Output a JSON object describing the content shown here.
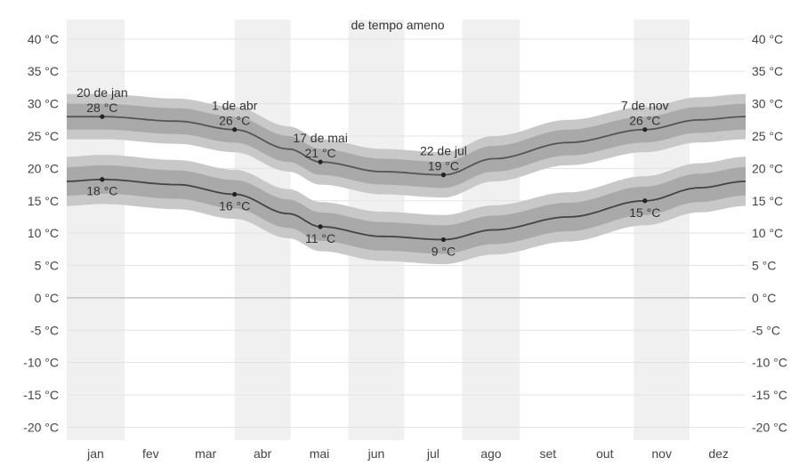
{
  "chart_data": {
    "type": "line",
    "title": "de tempo ameno",
    "x_unit": "day_of_year",
    "ylim": [
      -22,
      43
    ],
    "y_ticks": [
      -20,
      -15,
      -10,
      -5,
      0,
      5,
      10,
      15,
      20,
      25,
      30,
      35,
      40
    ],
    "y_tick_labels": [
      "-20 °C",
      "-15 °C",
      "-10 °C",
      "-5 °C",
      "0 °C",
      "5 °C",
      "10 °C",
      "15 °C",
      "20 °C",
      "25 °C",
      "30 °C",
      "35 °C",
      "40 °C"
    ],
    "months": [
      "jan",
      "fev",
      "mar",
      "abr",
      "mai",
      "jun",
      "jul",
      "ago",
      "set",
      "out",
      "nov",
      "dez"
    ],
    "shaded_months": [
      "jan",
      "abr",
      "jun",
      "ago",
      "nov"
    ],
    "grid": true,
    "legend": "none",
    "colors": {
      "high_line": "#555555",
      "low_line": "#444444",
      "outer_band": "#c8c8c8",
      "inner_band": "#a9a9a9",
      "month_shade": "#f0f0f0",
      "grid": "#e3e3e3",
      "zero_line": "#bbbbbb"
    },
    "series": [
      {
        "x": [
          1,
          20,
          60,
          91,
          120,
          137,
          170,
          203,
          230,
          270,
          311,
          340,
          365
        ],
        "values": [
          28,
          28,
          27.3,
          26,
          23,
          21,
          19.5,
          19,
          21.5,
          24,
          26,
          27.5,
          28
        ],
        "band_inner": [
          2,
          2,
          2,
          2,
          2,
          2,
          2,
          2,
          2,
          2,
          2,
          2,
          2
        ],
        "band_outer": [
          3.5,
          3.5,
          3.5,
          3.5,
          3.5,
          3.5,
          3.5,
          3.5,
          3.5,
          3.5,
          3.5,
          3.5,
          3.5
        ]
      },
      {
        "x": [
          1,
          20,
          60,
          91,
          120,
          137,
          170,
          203,
          230,
          270,
          311,
          340,
          365
        ],
        "values": [
          18,
          18.3,
          17.5,
          16,
          13,
          11,
          9.5,
          9,
          10.5,
          12.5,
          15,
          17,
          18
        ],
        "band_inner": [
          2.2,
          2.2,
          2.2,
          2.2,
          2.2,
          2.2,
          2.2,
          2.2,
          2.2,
          2.2,
          2.2,
          2.2,
          2.2
        ],
        "band_outer": [
          3.8,
          3.8,
          3.8,
          3.8,
          3.8,
          3.8,
          3.8,
          3.8,
          3.8,
          3.8,
          3.8,
          3.8,
          3.8
        ]
      }
    ],
    "annotations": [
      {
        "x": 20,
        "y": 28,
        "date": "20 de jan",
        "label": "28 °C",
        "position": "above"
      },
      {
        "x": 20,
        "y": 18.3,
        "date": "",
        "label": "18 °C",
        "position": "below"
      },
      {
        "x": 91,
        "y": 26,
        "date": "1 de abr",
        "label": "26 °C",
        "position": "above"
      },
      {
        "x": 91,
        "y": 16,
        "date": "",
        "label": "16 °C",
        "position": "below"
      },
      {
        "x": 137,
        "y": 21,
        "date": "17 de mai",
        "label": "21 °C",
        "position": "above"
      },
      {
        "x": 137,
        "y": 11,
        "date": "",
        "label": "11 °C",
        "position": "below"
      },
      {
        "x": 203,
        "y": 19,
        "date": "22 de jul",
        "label": "19 °C",
        "position": "above"
      },
      {
        "x": 203,
        "y": 9,
        "date": "",
        "label": "9 °C",
        "position": "below"
      },
      {
        "x": 311,
        "y": 26,
        "date": "7 de nov",
        "label": "26 °C",
        "position": "above"
      },
      {
        "x": 311,
        "y": 15,
        "date": "",
        "label": "15 °C",
        "position": "below"
      }
    ]
  }
}
